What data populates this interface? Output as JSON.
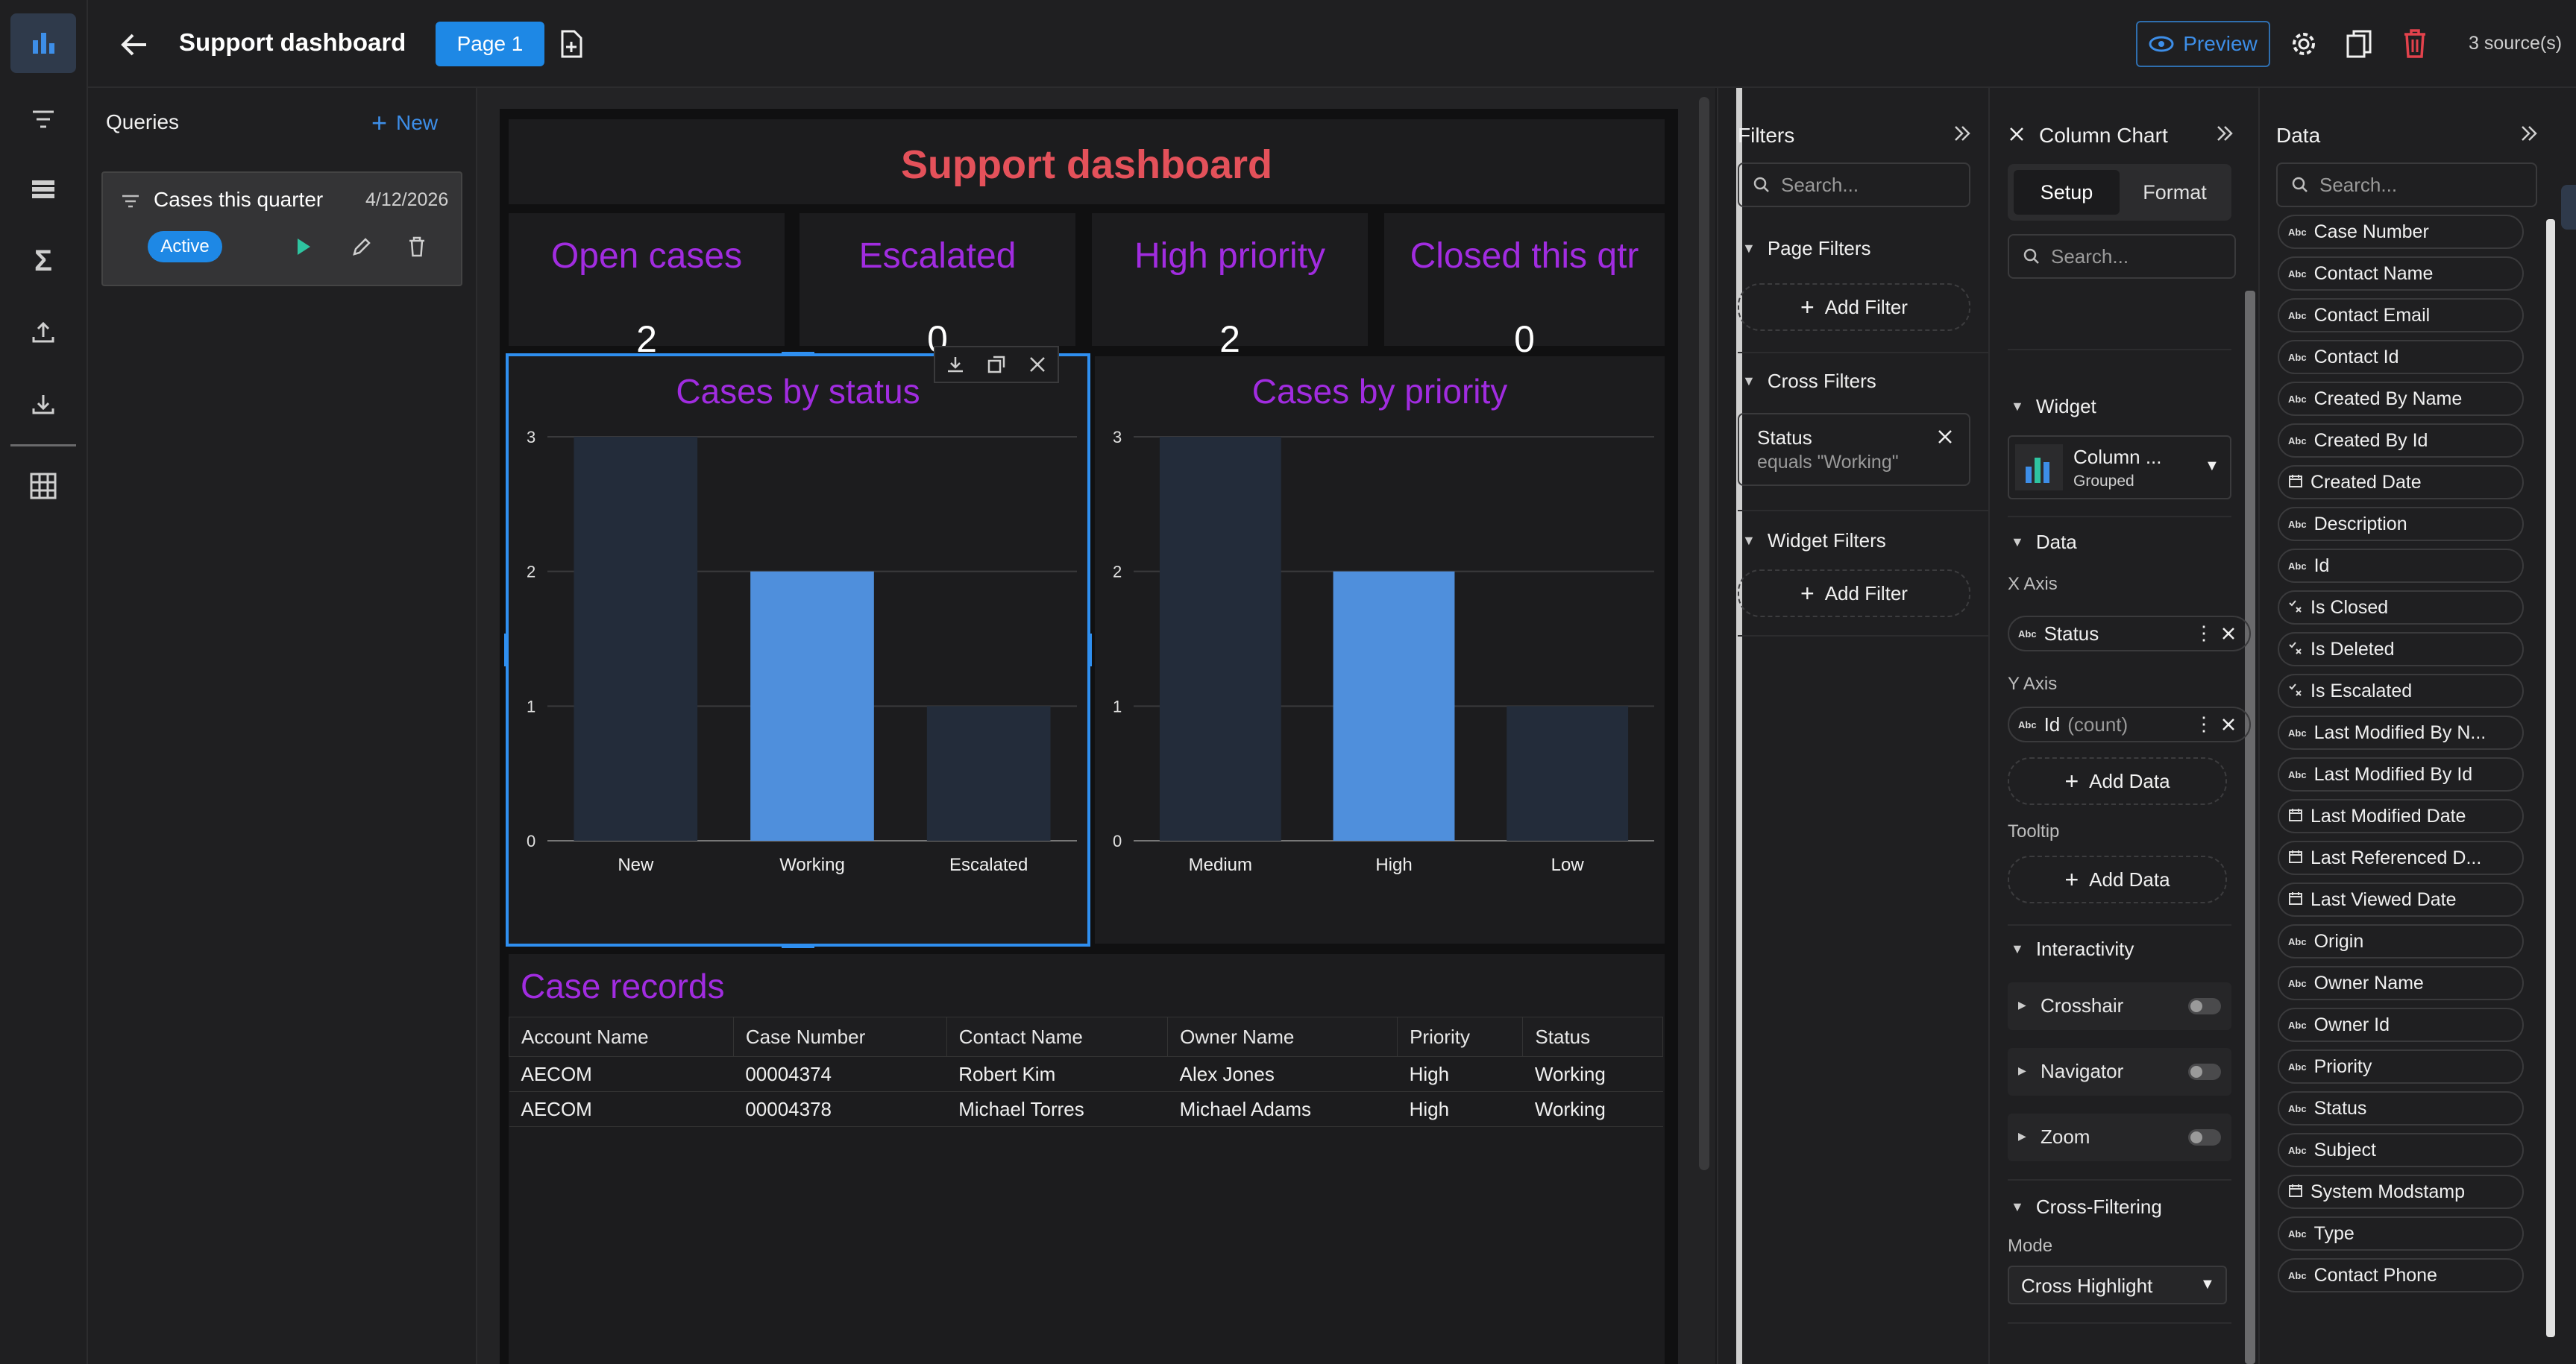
{
  "header": {
    "title": "Support dashboard",
    "page_tab": "Page 1",
    "preview_label": "Preview",
    "sources": "3 source(s)"
  },
  "queries": {
    "title": "Queries",
    "new_label": "New",
    "items": [
      {
        "name": "Cases this quarter",
        "date": "4/12/2026",
        "badge": "Active"
      }
    ]
  },
  "dashboard": {
    "title": "Support dashboard",
    "kpis": [
      {
        "label": "Open cases",
        "value": "2"
      },
      {
        "label": "Escalated",
        "value": "0"
      },
      {
        "label": "High priority",
        "value": "2"
      },
      {
        "label": "Closed this qtr",
        "value": "0"
      }
    ],
    "table": {
      "title": "Case records",
      "columns": [
        "Account Name",
        "Case Number",
        "Contact Name",
        "Owner Name",
        "Priority",
        "Status"
      ],
      "rows": [
        [
          "AECOM",
          "00004374",
          "Robert Kim",
          "Alex Jones",
          "High",
          "Working"
        ],
        [
          "AECOM",
          "00004378",
          "Michael Torres",
          "Michael Adams",
          "High",
          "Working"
        ]
      ]
    }
  },
  "chart_data": [
    {
      "type": "bar",
      "title": "Cases by status",
      "categories": [
        "New",
        "Working",
        "Escalated"
      ],
      "values": [
        3,
        2,
        1
      ],
      "highlighted": [
        false,
        true,
        false
      ],
      "ylim": [
        0,
        3
      ],
      "yticks": [
        "0",
        "1",
        "2",
        "3"
      ],
      "grid": true,
      "colors": {
        "bar": "#232c3a",
        "highlight": "#4f8fdc"
      }
    },
    {
      "type": "bar",
      "title": "Cases by priority",
      "categories": [
        "Medium",
        "High",
        "Low"
      ],
      "values": [
        3,
        2,
        1
      ],
      "highlighted": [
        false,
        true,
        false
      ],
      "ylim": [
        0,
        3
      ],
      "yticks": [
        "0",
        "1",
        "2",
        "3"
      ],
      "grid": true,
      "colors": {
        "bar": "#232c3a",
        "highlight": "#4f8fdc"
      }
    }
  ],
  "filters": {
    "title": "Filters",
    "search_placeholder": "Search...",
    "page_filters": "Page Filters",
    "cross_filters": "Cross Filters",
    "widget_filters": "Widget Filters",
    "add_filter": "Add Filter",
    "cross_filter_chip": {
      "field": "Status",
      "condition": "equals \"Working\""
    }
  },
  "column_chart": {
    "title": "Column Chart",
    "tab_setup": "Setup",
    "tab_format": "Format",
    "search_placeholder": "Search...",
    "widget_section": "Widget",
    "widget_name": "Column ...",
    "widget_sub": "Grouped",
    "data_section": "Data",
    "x_axis_label": "X Axis",
    "x_field": "Status",
    "y_axis_label": "Y Axis",
    "y_field": "Id",
    "y_agg": "(count)",
    "add_data": "Add Data",
    "tooltip_label": "Tooltip",
    "interactivity_section": "Interactivity",
    "interactivity": [
      "Crosshair",
      "Navigator",
      "Zoom"
    ],
    "cross_filtering_section": "Cross-Filtering",
    "mode_label": "Mode",
    "mode_value": "Cross Highlight"
  },
  "data_panel": {
    "title": "Data",
    "search_placeholder": "Search...",
    "fields": [
      {
        "name": "Case Number",
        "type": "text"
      },
      {
        "name": "Contact Name",
        "type": "text"
      },
      {
        "name": "Contact Email",
        "type": "text"
      },
      {
        "name": "Contact Id",
        "type": "text"
      },
      {
        "name": "Created By Name",
        "type": "text"
      },
      {
        "name": "Created By Id",
        "type": "text"
      },
      {
        "name": "Created Date",
        "type": "date"
      },
      {
        "name": "Description",
        "type": "text"
      },
      {
        "name": "Id",
        "type": "text"
      },
      {
        "name": "Is Closed",
        "type": "bool"
      },
      {
        "name": "Is Deleted",
        "type": "bool"
      },
      {
        "name": "Is Escalated",
        "type": "bool"
      },
      {
        "name": "Last Modified By N...",
        "type": "text"
      },
      {
        "name": "Last Modified By Id",
        "type": "text"
      },
      {
        "name": "Last Modified Date",
        "type": "date"
      },
      {
        "name": "Last Referenced D...",
        "type": "date"
      },
      {
        "name": "Last Viewed Date",
        "type": "date"
      },
      {
        "name": "Origin",
        "type": "text"
      },
      {
        "name": "Owner Name",
        "type": "text"
      },
      {
        "name": "Owner Id",
        "type": "text"
      },
      {
        "name": "Priority",
        "type": "text"
      },
      {
        "name": "Status",
        "type": "text"
      },
      {
        "name": "Subject",
        "type": "text"
      },
      {
        "name": "System Modstamp",
        "type": "date"
      },
      {
        "name": "Type",
        "type": "text"
      },
      {
        "name": "Contact Phone",
        "type": "text"
      }
    ]
  },
  "colors": {
    "accent": "#1e88e5",
    "title_red": "#e4515a",
    "title_purple": "#a12ce0",
    "active_badge": "#1e88e5",
    "delete_red": "#e2424c"
  }
}
